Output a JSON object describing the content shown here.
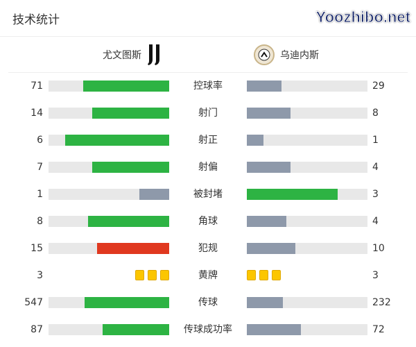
{
  "title": "技术统计",
  "home": {
    "name": "尤文图斯",
    "logo": "juventus-logo"
  },
  "away": {
    "name": "乌迪内斯",
    "logo": "udinese-logo"
  },
  "colors": {
    "green": "#2db343",
    "gray": "#8e99aa",
    "red": "#e0381f",
    "yellow": "#fcc600",
    "track": "#e8e8e8"
  },
  "stats": [
    {
      "label": "控球率",
      "home": "71",
      "away": "29",
      "home_pct": 71,
      "away_pct": 29,
      "home_color": "green",
      "away_color": "gray"
    },
    {
      "label": "射门",
      "home": "14",
      "away": "8",
      "home_pct": 64,
      "away_pct": 36,
      "home_color": "green",
      "away_color": "gray"
    },
    {
      "label": "射正",
      "home": "6",
      "away": "1",
      "home_pct": 86,
      "away_pct": 14,
      "home_color": "green",
      "away_color": "gray"
    },
    {
      "label": "射偏",
      "home": "7",
      "away": "4",
      "home_pct": 64,
      "away_pct": 36,
      "home_color": "green",
      "away_color": "gray"
    },
    {
      "label": "被封堵",
      "home": "1",
      "away": "3",
      "home_pct": 25,
      "away_pct": 75,
      "home_color": "gray",
      "away_color": "green"
    },
    {
      "label": "角球",
      "home": "8",
      "away": "4",
      "home_pct": 67,
      "away_pct": 33,
      "home_color": "green",
      "away_color": "gray"
    },
    {
      "label": "犯规",
      "home": "15",
      "away": "10",
      "home_pct": 60,
      "away_pct": 40,
      "home_color": "red",
      "away_color": "gray"
    },
    {
      "label": "黄牌",
      "home": "3",
      "away": "3",
      "cards": true
    },
    {
      "label": "传球",
      "home": "547",
      "away": "232",
      "home_pct": 70,
      "away_pct": 30,
      "home_color": "green",
      "away_color": "gray"
    },
    {
      "label": "传球成功率",
      "home": "87",
      "away": "72",
      "home_pct": 55,
      "away_pct": 45,
      "home_color": "green",
      "away_color": "gray"
    }
  ],
  "watermark": "Yoozhibo.net"
}
